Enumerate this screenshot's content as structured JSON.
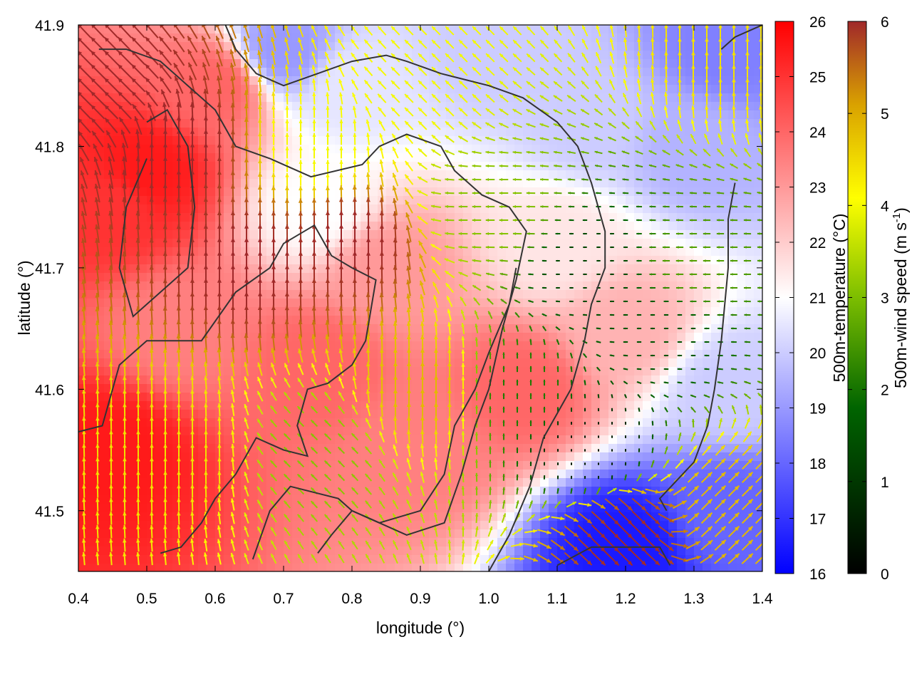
{
  "chart_data": {
    "type": "heatmap",
    "subtype": "temperature field with wind vector overlay and contour lines",
    "xlabel": "longitude (°)",
    "ylabel": "latitude (°)",
    "xlim": [
      0.4,
      1.4
    ],
    "ylim": [
      41.45,
      41.9
    ],
    "x_ticks": [
      "0.4",
      "0.5",
      "0.6",
      "0.7",
      "0.8",
      "0.9",
      "1.0",
      "1.1",
      "1.2",
      "1.3",
      "1.4"
    ],
    "y_ticks": [
      "41.5",
      "41.6",
      "41.7",
      "41.8",
      "41.9"
    ],
    "grid": false,
    "temperature_colorbar": {
      "label": "500m-temperature (°C)",
      "range": [
        16,
        26
      ],
      "ticks": [
        "16",
        "17",
        "18",
        "19",
        "20",
        "21",
        "22",
        "23",
        "24",
        "25",
        "26"
      ],
      "colors": [
        "#0000ff",
        "#ffffff",
        "#ff0000"
      ]
    },
    "wind_colorbar": {
      "label": "500m-wind speed (m s",
      "label_superscript": "-1",
      "label_suffix": ")",
      "range": [
        0,
        6
      ],
      "ticks": [
        "0",
        "1",
        "2",
        "3",
        "4",
        "5",
        "6"
      ],
      "colors": [
        "#000000",
        "#006400",
        "#7cbe00",
        "#ffff00",
        "#d9a100",
        "#a0282a"
      ]
    },
    "temperature_field_estimates": [
      {
        "lon": 0.45,
        "lat": 41.55,
        "temperature": 25.5
      },
      {
        "lon": 0.45,
        "lat": 41.75,
        "temperature": 25.0
      },
      {
        "lon": 0.5,
        "lat": 41.78,
        "temperature": 25.5
      },
      {
        "lon": 0.55,
        "lat": 41.65,
        "temperature": 23.5
      },
      {
        "lon": 0.6,
        "lat": 41.85,
        "temperature": 24.0
      },
      {
        "lon": 0.75,
        "lat": 41.62,
        "temperature": 24.0
      },
      {
        "lon": 0.75,
        "lat": 41.75,
        "temperature": 21.0
      },
      {
        "lon": 0.8,
        "lat": 41.85,
        "temperature": 20.5
      },
      {
        "lon": 0.85,
        "lat": 41.7,
        "temperature": 23.0
      },
      {
        "lon": 0.9,
        "lat": 41.55,
        "temperature": 23.5
      },
      {
        "lon": 0.7,
        "lat": 41.88,
        "temperature": 19.0
      },
      {
        "lon": 1.0,
        "lat": 41.88,
        "temperature": 20.0
      },
      {
        "lon": 1.05,
        "lat": 41.6,
        "temperature": 24.0
      },
      {
        "lon": 1.1,
        "lat": 41.72,
        "temperature": 21.5
      },
      {
        "lon": 1.15,
        "lat": 41.82,
        "temperature": 20.0
      },
      {
        "lon": 1.2,
        "lat": 41.65,
        "temperature": 22.5
      },
      {
        "lon": 1.3,
        "lat": 41.8,
        "temperature": 19.5
      },
      {
        "lon": 1.35,
        "lat": 41.88,
        "temperature": 18.5
      },
      {
        "lon": 1.35,
        "lat": 41.6,
        "temperature": 20.0
      },
      {
        "lon": 1.2,
        "lat": 41.47,
        "temperature": 16.5
      },
      {
        "lon": 1.35,
        "lat": 41.5,
        "temperature": 18.0
      }
    ],
    "wind_field_estimates": [
      {
        "lon": 0.45,
        "lat": 41.85,
        "speed": 6.0,
        "direction": "southeasterly"
      },
      {
        "lon": 0.55,
        "lat": 41.8,
        "speed": 6.0,
        "direction": "southerly"
      },
      {
        "lon": 0.65,
        "lat": 41.7,
        "speed": 6.0,
        "direction": "southerly"
      },
      {
        "lon": 0.55,
        "lat": 41.55,
        "speed": 4.0,
        "direction": "southerly"
      },
      {
        "lon": 0.75,
        "lat": 41.55,
        "speed": 2.5,
        "direction": "southeasterly"
      },
      {
        "lon": 0.8,
        "lat": 41.72,
        "speed": 6.0,
        "direction": "southerly"
      },
      {
        "lon": 0.75,
        "lat": 41.8,
        "speed": 3.5,
        "direction": "southerly"
      },
      {
        "lon": 0.9,
        "lat": 41.85,
        "speed": 3.5,
        "direction": "southeasterly"
      },
      {
        "lon": 0.9,
        "lat": 41.6,
        "speed": 4.5,
        "direction": "southerly"
      },
      {
        "lon": 1.0,
        "lat": 41.75,
        "speed": 2.5,
        "direction": "easterly"
      },
      {
        "lon": 1.05,
        "lat": 41.6,
        "speed": 1.5,
        "direction": "southerly"
      },
      {
        "lon": 1.15,
        "lat": 41.7,
        "speed": 0.8,
        "direction": "easterly"
      },
      {
        "lon": 1.15,
        "lat": 41.55,
        "speed": 0.3,
        "direction": "southerly"
      },
      {
        "lon": 1.25,
        "lat": 41.65,
        "speed": 1.0,
        "direction": "easterly"
      },
      {
        "lon": 1.3,
        "lat": 41.7,
        "speed": 2.0,
        "direction": "easterly"
      },
      {
        "lon": 1.35,
        "lat": 41.88,
        "speed": 4.0,
        "direction": "southerly"
      },
      {
        "lon": 1.2,
        "lat": 41.48,
        "speed": 6.0,
        "direction": "northwesterly"
      },
      {
        "lon": 1.35,
        "lat": 41.5,
        "speed": 4.5,
        "direction": "southwesterly"
      }
    ],
    "contour_lines": [
      [
        [
          0.4,
          41.565
        ],
        [
          0.435,
          41.57
        ],
        [
          0.46,
          41.62
        ],
        [
          0.5,
          41.64
        ],
        [
          0.58,
          41.64
        ],
        [
          0.63,
          41.68
        ],
        [
          0.68,
          41.7
        ],
        [
          0.7,
          41.72
        ],
        [
          0.745,
          41.735
        ],
        [
          0.77,
          41.71
        ],
        [
          0.8,
          41.7
        ],
        [
          0.835,
          41.69
        ],
        [
          0.82,
          41.64
        ],
        [
          0.8,
          41.62
        ],
        [
          0.765,
          41.605
        ],
        [
          0.735,
          41.6
        ],
        [
          0.72,
          41.57
        ],
        [
          0.735,
          41.545
        ],
        [
          0.7,
          41.55
        ],
        [
          0.66,
          41.56
        ],
        [
          0.63,
          41.53
        ],
        [
          0.6,
          41.51
        ],
        [
          0.58,
          41.49
        ],
        [
          0.55,
          41.47
        ],
        [
          0.52,
          41.465
        ]
      ],
      [
        [
          0.655,
          41.46
        ],
        [
          0.68,
          41.5
        ],
        [
          0.71,
          41.52
        ],
        [
          0.78,
          41.51
        ],
        [
          0.8,
          41.5
        ],
        [
          0.84,
          41.49
        ],
        [
          0.88,
          41.48
        ],
        [
          0.935,
          41.49
        ],
        [
          0.96,
          41.53
        ],
        [
          0.98,
          41.57
        ],
        [
          1.0,
          41.6
        ],
        [
          1.02,
          41.65
        ],
        [
          1.04,
          41.69
        ],
        [
          1.055,
          41.73
        ],
        [
          1.03,
          41.75
        ],
        [
          0.99,
          41.76
        ],
        [
          0.95,
          41.78
        ],
        [
          0.93,
          41.8
        ],
        [
          0.88,
          41.81
        ],
        [
          0.84,
          41.8
        ],
        [
          0.815,
          41.785
        ],
        [
          0.74,
          41.775
        ],
        [
          0.68,
          41.79
        ],
        [
          0.63,
          41.8
        ],
        [
          0.6,
          41.83
        ],
        [
          0.56,
          41.85
        ],
        [
          0.52,
          41.87
        ],
        [
          0.47,
          41.88
        ],
        [
          0.43,
          41.88
        ]
      ],
      [
        [
          0.75,
          41.465
        ],
        [
          0.77,
          41.48
        ],
        [
          0.8,
          41.5
        ],
        [
          0.84,
          41.49
        ],
        [
          0.9,
          41.5
        ],
        [
          0.935,
          41.53
        ],
        [
          0.95,
          41.57
        ],
        [
          0.98,
          41.6
        ],
        [
          1.0,
          41.63
        ],
        [
          1.03,
          41.67
        ],
        [
          1.04,
          41.7
        ]
      ],
      [
        [
          1.0,
          41.45
        ],
        [
          1.03,
          41.48
        ],
        [
          1.06,
          41.52
        ],
        [
          1.08,
          41.56
        ],
        [
          1.12,
          41.6
        ],
        [
          1.14,
          41.64
        ],
        [
          1.15,
          41.67
        ],
        [
          1.17,
          41.7
        ],
        [
          1.17,
          41.73
        ],
        [
          1.15,
          41.77
        ],
        [
          1.13,
          41.8
        ],
        [
          1.1,
          41.82
        ],
        [
          1.05,
          41.84
        ],
        [
          1.0,
          41.85
        ],
        [
          0.93,
          41.86
        ],
        [
          0.88,
          41.87
        ],
        [
          0.85,
          41.875
        ],
        [
          0.8,
          41.87
        ],
        [
          0.75,
          41.86
        ],
        [
          0.7,
          41.85
        ],
        [
          0.66,
          41.86
        ],
        [
          0.63,
          41.88
        ],
        [
          0.615,
          41.9
        ]
      ],
      [
        [
          1.1,
          41.455
        ],
        [
          1.15,
          41.47
        ],
        [
          1.2,
          41.47
        ],
        [
          1.25,
          41.47
        ],
        [
          1.265,
          41.455
        ]
      ],
      [
        [
          1.26,
          41.5
        ],
        [
          1.25,
          41.51
        ],
        [
          1.3,
          41.54
        ],
        [
          1.32,
          41.57
        ],
        [
          1.33,
          41.6
        ],
        [
          1.34,
          41.64
        ],
        [
          1.345,
          41.67
        ],
        [
          1.35,
          41.7
        ],
        [
          1.35,
          41.74
        ],
        [
          1.36,
          41.77
        ]
      ],
      [
        [
          0.5,
          41.79
        ],
        [
          0.47,
          41.75
        ],
        [
          0.46,
          41.7
        ],
        [
          0.48,
          41.66
        ],
        [
          0.52,
          41.68
        ],
        [
          0.56,
          41.7
        ],
        [
          0.57,
          41.75
        ],
        [
          0.56,
          41.8
        ],
        [
          0.53,
          41.83
        ],
        [
          0.5,
          41.82
        ]
      ],
      [
        [
          1.34,
          41.88
        ],
        [
          1.36,
          41.89
        ],
        [
          1.4,
          41.9
        ]
      ]
    ]
  }
}
